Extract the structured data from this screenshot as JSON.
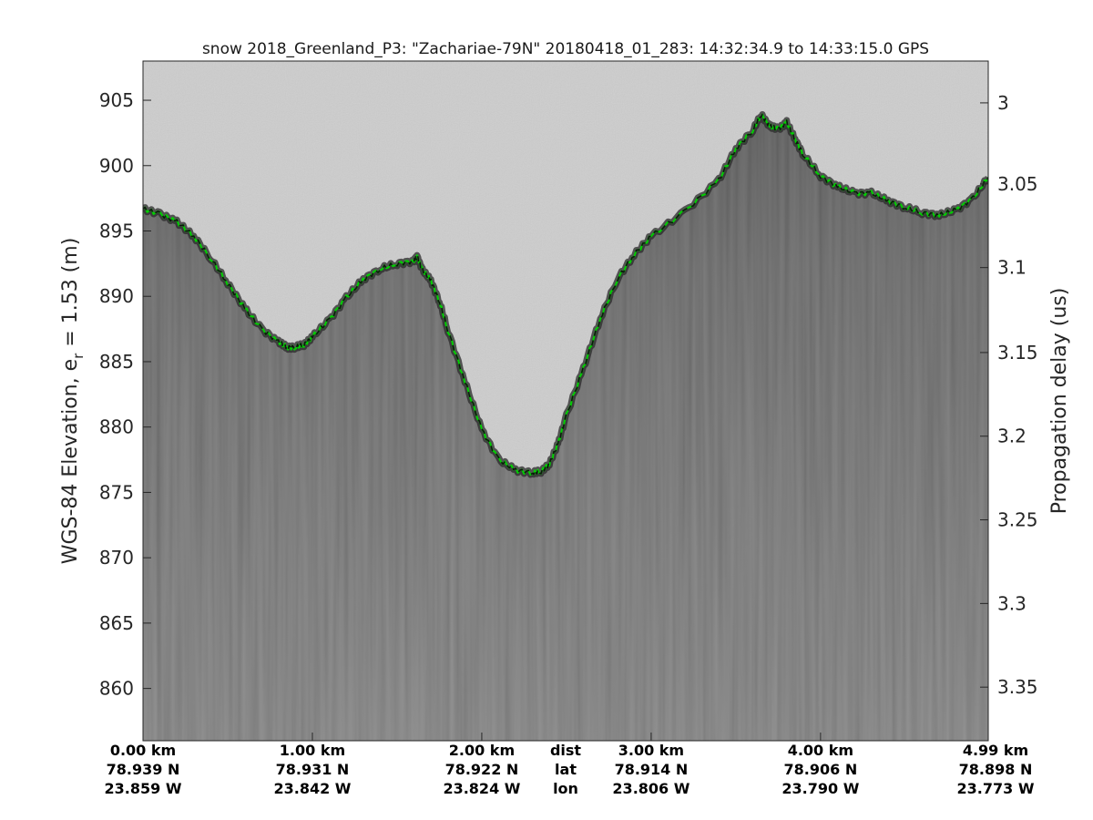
{
  "chart_data": {
    "type": "line",
    "title": "snow 2018_Greenland_P3: \"Zachariae-79N\"  20180418_01_283: 14:32:34.9 to 14:33:15.0 GPS",
    "ylabel_left_prefix": "WGS-84 Elevation, e",
    "ylabel_left_sub": "r",
    "ylabel_left_suffix": " = 1.53 (m)",
    "ylabel_right": "Propagation delay (us)",
    "xlim": [
      0,
      4.99
    ],
    "ylim": [
      856,
      908
    ],
    "yticks_left": [
      "860",
      "865",
      "870",
      "875",
      "880",
      "885",
      "890",
      "895",
      "900",
      "905"
    ],
    "yticks_left_values": [
      860,
      865,
      870,
      875,
      880,
      885,
      890,
      895,
      900,
      905
    ],
    "yticks_right": [
      "3",
      "3.05",
      "3.1",
      "3.15",
      "3.2",
      "3.25",
      "3.3",
      "3.35"
    ],
    "yticks_right_elevation": [
      904.8,
      898.6,
      892.2,
      885.7,
      879.3,
      872.9,
      866.5,
      860.1
    ],
    "x_ticks": [
      {
        "x": 0.0,
        "dist": "0.00 km",
        "lat": "78.939 N",
        "lon": "23.859 W"
      },
      {
        "x": 1.0,
        "dist": "1.00 km",
        "lat": "78.931 N",
        "lon": "23.842 W"
      },
      {
        "x": 2.0,
        "dist": "2.00 km",
        "lat": "78.922 N",
        "lon": "23.824 W"
      },
      {
        "x": 3.0,
        "dist": "3.00 km",
        "lat": "78.914 N",
        "lon": "23.806 W"
      },
      {
        "x": 4.0,
        "dist": "4.00 km",
        "lat": "78.906 N",
        "lon": "23.790 W"
      },
      {
        "x": 4.99,
        "dist": "4.99 km",
        "lat": "78.898 N",
        "lon": "23.773 W"
      }
    ],
    "x_row_labels": {
      "dist": "dist",
      "lat": "lat",
      "lon": "lon"
    },
    "series": [
      {
        "x": [
          0,
          0.1,
          0.2,
          0.3,
          0.4,
          0.5,
          0.6,
          0.7,
          0.8,
          0.85,
          0.9,
          0.95,
          1.0,
          1.1,
          1.2,
          1.3,
          1.4,
          1.5,
          1.6,
          1.62,
          1.65,
          1.7,
          1.75,
          1.8,
          1.9,
          2.0,
          2.1,
          2.2,
          2.3,
          2.35,
          2.4,
          2.45,
          2.5,
          2.6,
          2.7,
          2.8,
          2.9,
          3.0,
          3.2,
          3.4,
          3.5,
          3.6,
          3.65,
          3.7,
          3.75,
          3.8,
          3.85,
          3.9,
          4.0,
          4.1,
          4.2,
          4.3,
          4.4,
          4.5,
          4.6,
          4.7,
          4.8,
          4.9,
          4.99
        ],
        "y": [
          896.7,
          896.3,
          895.7,
          894.6,
          892.9,
          891.0,
          889.1,
          887.5,
          886.5,
          886.1,
          886.1,
          886.3,
          886.9,
          888.2,
          889.9,
          891.3,
          892.1,
          892.5,
          892.7,
          893.0,
          892.0,
          891.2,
          889.6,
          887.4,
          883.5,
          879.8,
          877.5,
          876.7,
          876.5,
          876.6,
          877.2,
          878.7,
          880.9,
          884.5,
          888.3,
          891.3,
          893.2,
          894.6,
          896.5,
          898.9,
          901.3,
          902.7,
          903.9,
          903.0,
          902.8,
          903.3,
          902.0,
          900.8,
          899.2,
          898.4,
          897.9,
          897.9,
          897.3,
          896.8,
          896.4,
          896.2,
          896.6,
          897.5,
          899.1
        ]
      }
    ],
    "colors": {
      "surface_pick": "#00d000",
      "pick_dashes": "#111111",
      "ice": "#5d5d5d",
      "air": "#d4d4d4"
    }
  }
}
